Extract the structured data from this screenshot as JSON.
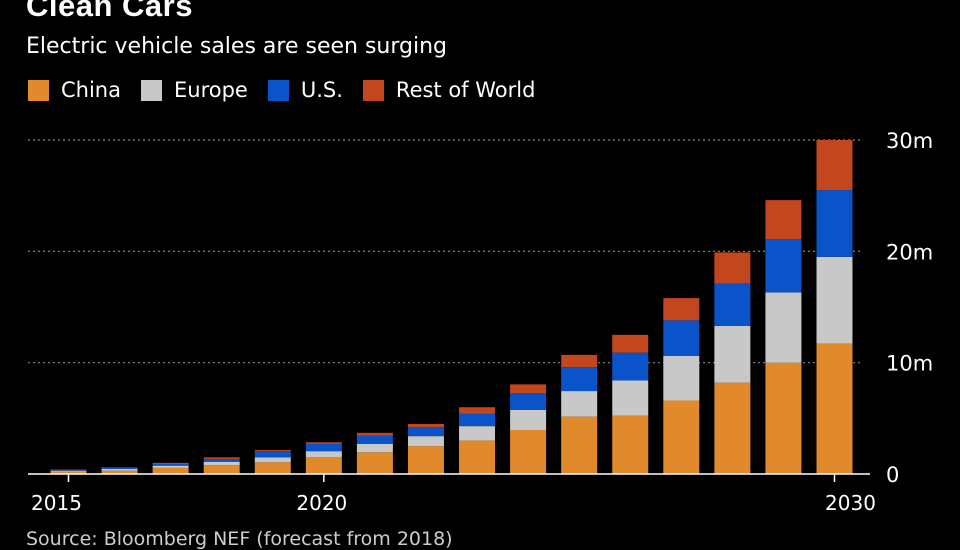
{
  "title": "Clean Cars",
  "subtitle": "Electric vehicle sales are seen surging",
  "source": "Source: Bloomberg NEF (forecast from 2018)",
  "colors": {
    "China": "#e08a2c",
    "Europe": "#c8c8c8",
    "U.S.": "#0a53c8",
    "Rest of World": "#c2461e"
  },
  "chart_data": {
    "type": "bar",
    "stacked": true,
    "title": "Clean Cars",
    "subtitle": "Electric vehicle sales are seen surging",
    "categories": [
      "2015",
      "2016",
      "2017",
      "2018",
      "2019",
      "2020",
      "2021",
      "2022",
      "2023",
      "2024",
      "2025",
      "2026",
      "2027",
      "2028",
      "2029",
      "2030"
    ],
    "x_tick_labels": [
      "2015",
      "2020",
      "2030"
    ],
    "series": [
      {
        "name": "China",
        "values": [
          0.2,
          0.3,
          0.55,
          0.8,
          1.05,
          1.5,
          1.95,
          2.5,
          3.0,
          3.95,
          5.15,
          5.25,
          6.6,
          8.2,
          10.0,
          11.7
        ]
      },
      {
        "name": "Europe",
        "values": [
          0.1,
          0.15,
          0.2,
          0.3,
          0.45,
          0.55,
          0.75,
          0.9,
          1.3,
          1.8,
          2.3,
          3.15,
          4.0,
          5.1,
          6.3,
          7.8
        ]
      },
      {
        "name": "U.S.",
        "values": [
          0.05,
          0.1,
          0.15,
          0.25,
          0.55,
          0.65,
          0.75,
          0.8,
          1.1,
          1.5,
          2.15,
          2.5,
          3.2,
          3.8,
          4.8,
          6.0
        ]
      },
      {
        "name": "Rest of World",
        "values": [
          0.05,
          0.05,
          0.1,
          0.15,
          0.1,
          0.15,
          0.25,
          0.3,
          0.6,
          0.8,
          1.1,
          1.6,
          2.0,
          2.8,
          3.5,
          4.5
        ]
      }
    ],
    "y_ticks": [
      0,
      10,
      20,
      30
    ],
    "y_tick_labels": [
      "0",
      "10m",
      "20m",
      "30m"
    ],
    "ylim": [
      0,
      30
    ],
    "ylabel": "",
    "xlabel": "",
    "grid": true,
    "legend": "top-left"
  }
}
